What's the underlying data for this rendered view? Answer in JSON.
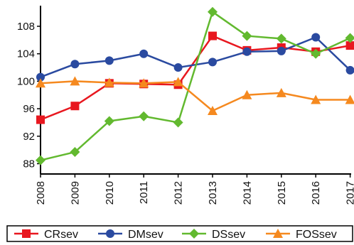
{
  "chart_data": {
    "type": "line",
    "title": "",
    "xlabel": "",
    "ylabel": "",
    "categories": [
      "2008",
      "2009",
      "2010",
      "2011",
      "2012",
      "2013",
      "2014",
      "2015",
      "2016",
      "2017"
    ],
    "ylim": [
      86.5,
      111
    ],
    "yticks": [
      88,
      92,
      96,
      100,
      104,
      108
    ],
    "grid": false,
    "legend_position": "bottom",
    "series": [
      {
        "name": "CRsev",
        "color": "#e8171f",
        "marker": "square",
        "values": [
          94.4,
          96.4,
          99.7,
          99.6,
          99.5,
          106.6,
          104.5,
          104.9,
          104.3,
          105.2
        ]
      },
      {
        "name": "DMsev",
        "color": "#2a4aa0",
        "marker": "circle",
        "values": [
          100.6,
          102.5,
          103.0,
          104.0,
          102.0,
          102.8,
          104.3,
          104.4,
          106.4,
          101.6
        ]
      },
      {
        "name": "DSsev",
        "color": "#62b92f",
        "marker": "diamond",
        "values": [
          88.5,
          89.7,
          94.2,
          94.9,
          94.0,
          110.1,
          106.6,
          106.2,
          104.0,
          106.3
        ]
      },
      {
        "name": "FOSsev",
        "color": "#f5891f",
        "marker": "triangle",
        "values": [
          99.7,
          100.0,
          99.8,
          99.7,
          99.9,
          95.7,
          98.0,
          98.3,
          97.3,
          97.3
        ]
      }
    ]
  }
}
